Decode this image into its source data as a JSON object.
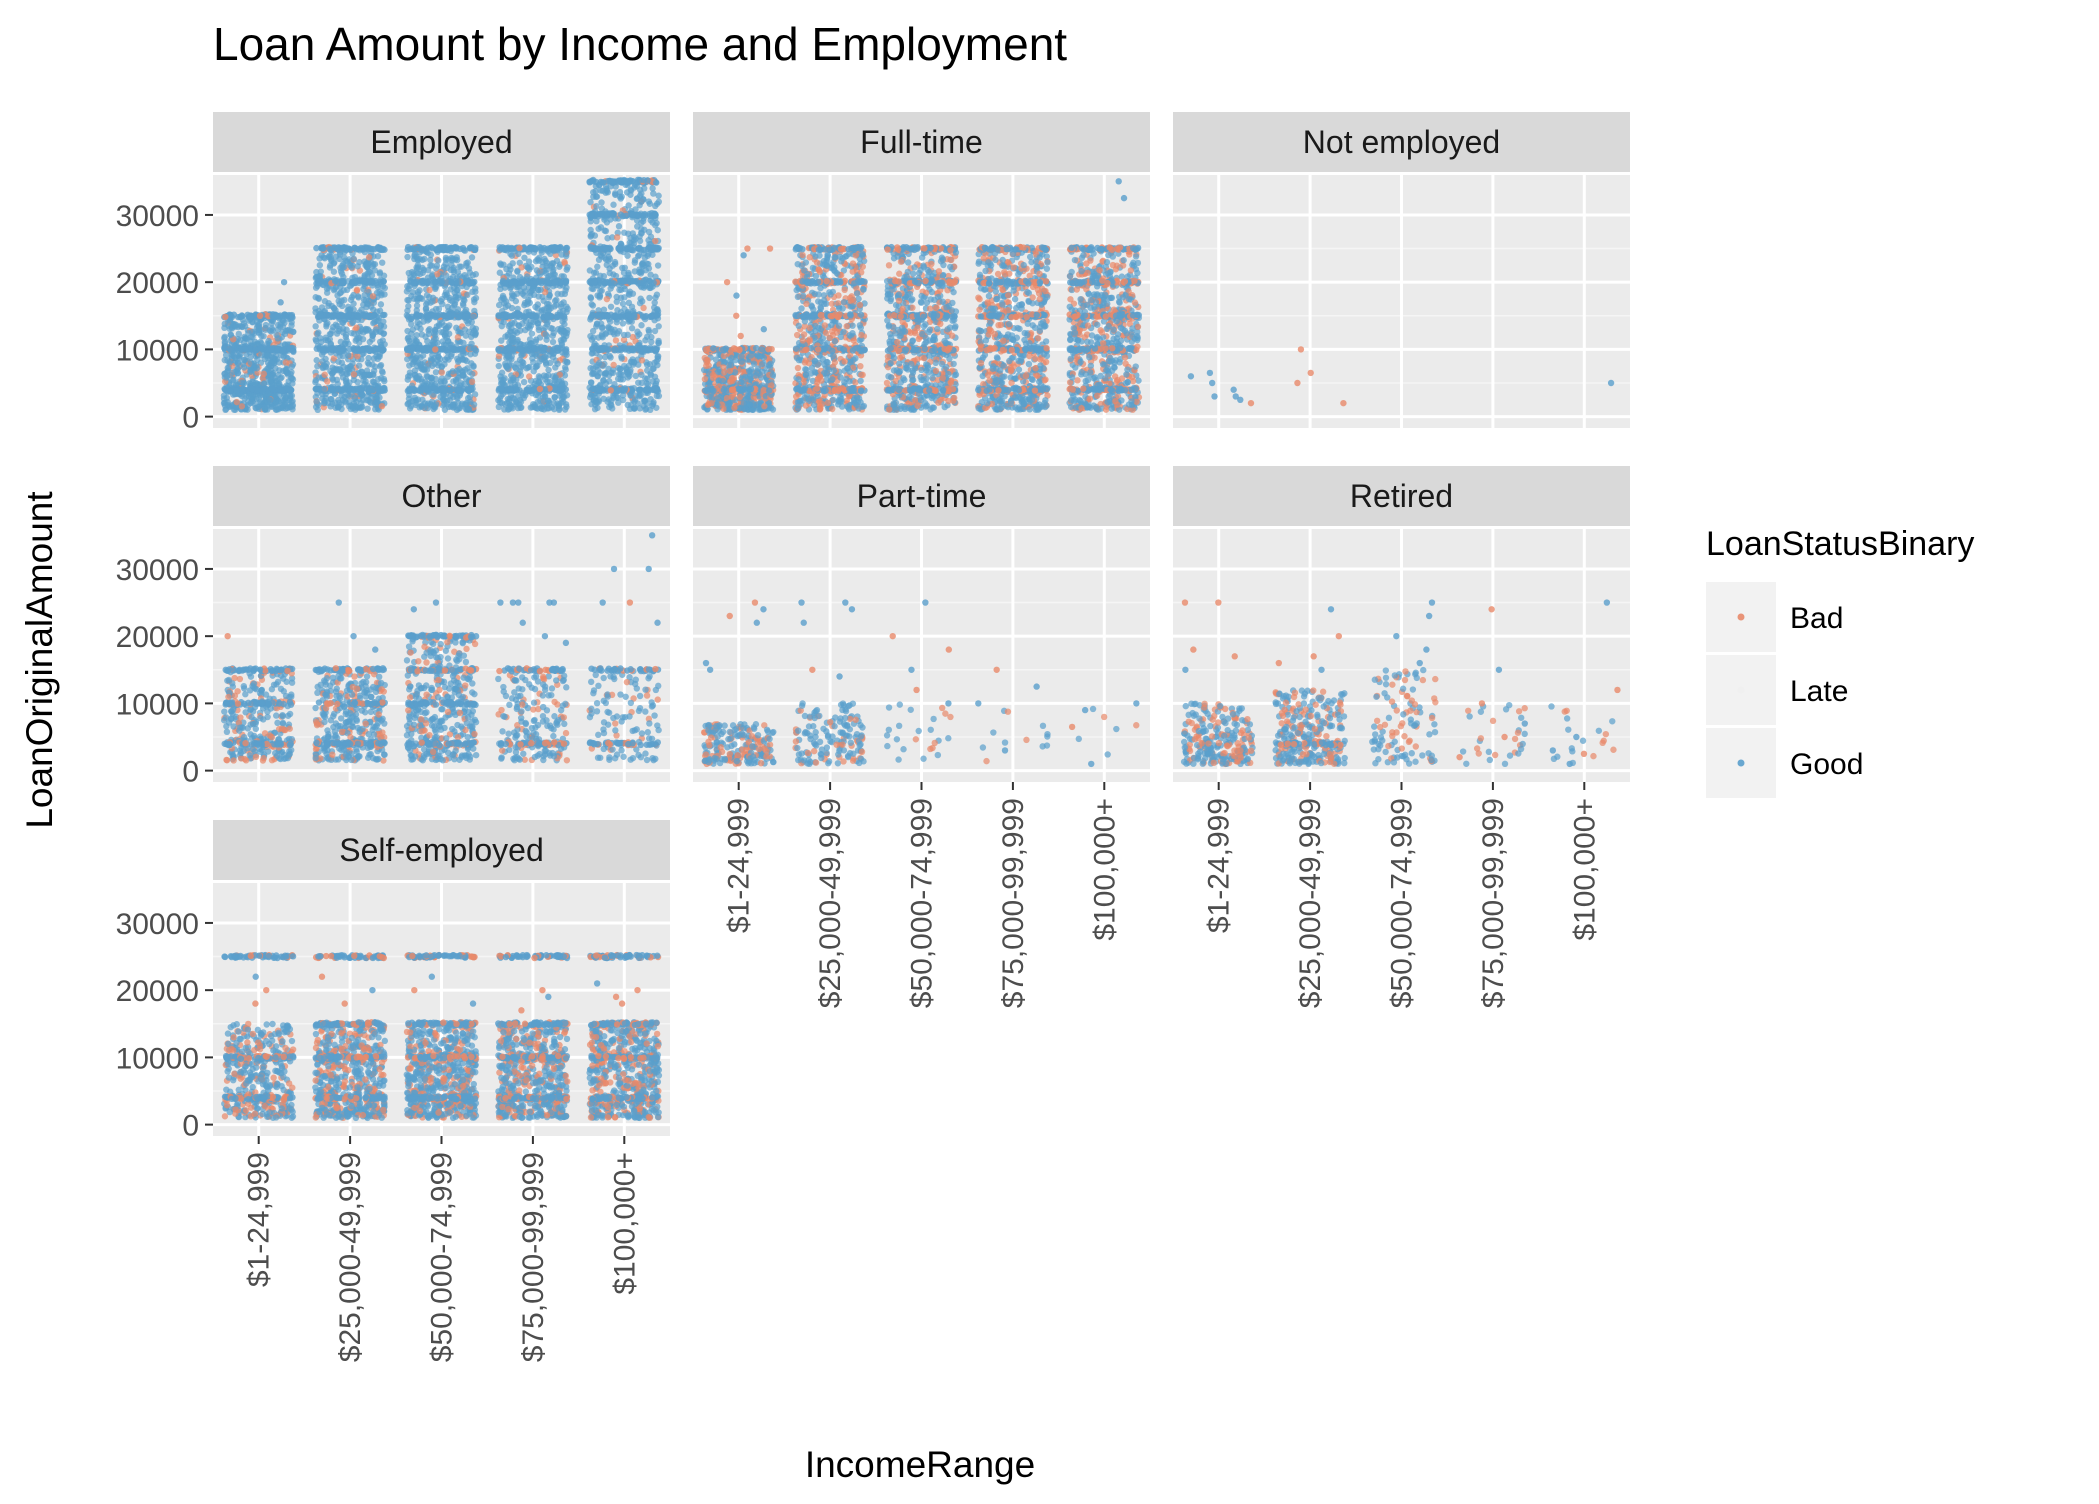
{
  "chart_data": {
    "type": "scatter",
    "title": "Loan Amount by Income and Employment",
    "xlabel": "IncomeRange",
    "ylabel": "LoanOriginalAmount",
    "x_categories": [
      "$1-24,999",
      "$25,000-49,999",
      "$50,000-74,999",
      "$75,000-99,999",
      "$100,000+"
    ],
    "y_ticks": [
      0,
      10000,
      20000,
      30000
    ],
    "ylim": [
      0,
      35000
    ],
    "grid": true,
    "legend": {
      "title": "LoanStatusBinary",
      "placement": "right",
      "entries": [
        {
          "name": "Bad",
          "color": "#e8896a"
        },
        {
          "name": "Late",
          "color": "#f0f0f0"
        },
        {
          "name": "Good",
          "color": "#5a9fcc"
        }
      ]
    },
    "panels": [
      {
        "name": "Employed",
        "density": [
          1.0,
          1.0,
          1.0,
          1.0,
          1.0
        ],
        "ranges": [
          [
            1000,
            15000
          ],
          [
            1000,
            25000
          ],
          [
            1000,
            25000
          ],
          [
            1000,
            25000
          ],
          [
            1000,
            35000
          ]
        ],
        "bad_share": 0.05,
        "levels": [
          [
            4000,
            10000,
            15000
          ],
          [
            4000,
            10000,
            15000,
            20000,
            25000
          ],
          [
            4000,
            10000,
            15000,
            20000,
            25000
          ],
          [
            4000,
            10000,
            15000,
            20000,
            25000
          ],
          [
            4000,
            10000,
            15000,
            20000,
            25000,
            30000,
            35000
          ]
        ],
        "points": [
          {
            "x": 0,
            "y": 20000,
            "s": "Good"
          },
          {
            "x": 0,
            "y": 17000,
            "s": "Good"
          },
          {
            "x": 1,
            "y": 21000,
            "s": "Good"
          },
          {
            "x": 4,
            "y": 32000,
            "s": "Good"
          },
          {
            "x": 4,
            "y": 33000,
            "s": "Good"
          }
        ]
      },
      {
        "name": "Full-time",
        "density": [
          0.85,
          1.0,
          1.0,
          1.0,
          1.0
        ],
        "ranges": [
          [
            1000,
            10000
          ],
          [
            1000,
            25000
          ],
          [
            1000,
            25000
          ],
          [
            1000,
            25000
          ],
          [
            1000,
            25000
          ]
        ],
        "bad_share": 0.35,
        "levels": [
          [
            4000,
            10000
          ],
          [
            4000,
            10000,
            15000,
            20000,
            25000
          ],
          [
            4000,
            10000,
            15000,
            20000,
            25000
          ],
          [
            4000,
            10000,
            15000,
            20000,
            25000
          ],
          [
            4000,
            10000,
            15000,
            20000,
            25000
          ]
        ],
        "points": [
          {
            "x": 0,
            "y": 25000,
            "s": "Bad"
          },
          {
            "x": 0,
            "y": 25000,
            "s": "Bad"
          },
          {
            "x": 0,
            "y": 20000,
            "s": "Bad"
          },
          {
            "x": 0,
            "y": 18000,
            "s": "Good"
          },
          {
            "x": 0,
            "y": 15000,
            "s": "Bad"
          },
          {
            "x": 0,
            "y": 13000,
            "s": "Good"
          },
          {
            "x": 0,
            "y": 24000,
            "s": "Good"
          },
          {
            "x": 0,
            "y": 12000,
            "s": "Bad"
          },
          {
            "x": 4,
            "y": 32500,
            "s": "Good"
          },
          {
            "x": 4,
            "y": 35000,
            "s": "Good"
          }
        ]
      },
      {
        "name": "Not employed",
        "density": [
          0,
          0,
          0,
          0,
          0
        ],
        "ranges": [
          [
            1000,
            5000
          ],
          [
            1000,
            5000
          ],
          [
            1000,
            5000
          ],
          [
            1000,
            5000
          ],
          [
            1000,
            5000
          ]
        ],
        "bad_share": 0.4,
        "levels": [
          [],
          [],
          [],
          [],
          []
        ],
        "points": [
          {
            "x": 0,
            "y": 2000,
            "s": "Bad"
          },
          {
            "x": 0,
            "y": 3000,
            "s": "Good"
          },
          {
            "x": 0,
            "y": 2500,
            "s": "Good"
          },
          {
            "x": 0,
            "y": 3000,
            "s": "Good"
          },
          {
            "x": 0,
            "y": 4000,
            "s": "Good"
          },
          {
            "x": 0,
            "y": 5000,
            "s": "Good"
          },
          {
            "x": 0,
            "y": 6000,
            "s": "Good"
          },
          {
            "x": 0,
            "y": 6500,
            "s": "Good"
          },
          {
            "x": 1,
            "y": 2000,
            "s": "Bad"
          },
          {
            "x": 1,
            "y": 6500,
            "s": "Bad"
          },
          {
            "x": 1,
            "y": 5000,
            "s": "Bad"
          },
          {
            "x": 1,
            "y": 10000,
            "s": "Bad"
          },
          {
            "x": 4,
            "y": 5000,
            "s": "Good"
          }
        ]
      },
      {
        "name": "Other",
        "density": [
          0.45,
          0.55,
          0.6,
          0.3,
          0.18
        ],
        "ranges": [
          [
            1500,
            15000
          ],
          [
            1500,
            15000
          ],
          [
            1500,
            20000
          ],
          [
            1500,
            15000
          ],
          [
            1500,
            15000
          ]
        ],
        "bad_share": 0.2,
        "levels": [
          [
            4000,
            10000,
            15000
          ],
          [
            4000,
            10000,
            15000
          ],
          [
            4000,
            10000,
            15000,
            20000
          ],
          [
            4000,
            15000
          ],
          [
            4000,
            15000
          ]
        ],
        "points": [
          {
            "x": 0,
            "y": 20000,
            "s": "Bad"
          },
          {
            "x": 1,
            "y": 25000,
            "s": "Good"
          },
          {
            "x": 1,
            "y": 20000,
            "s": "Good"
          },
          {
            "x": 1,
            "y": 18000,
            "s": "Good"
          },
          {
            "x": 2,
            "y": 25000,
            "s": "Good"
          },
          {
            "x": 2,
            "y": 24000,
            "s": "Good"
          },
          {
            "x": 3,
            "y": 25000,
            "s": "Good"
          },
          {
            "x": 3,
            "y": 25000,
            "s": "Good"
          },
          {
            "x": 3,
            "y": 25000,
            "s": "Good"
          },
          {
            "x": 3,
            "y": 25000,
            "s": "Good"
          },
          {
            "x": 3,
            "y": 25000,
            "s": "Good"
          },
          {
            "x": 3,
            "y": 22000,
            "s": "Good"
          },
          {
            "x": 3,
            "y": 20000,
            "s": "Good"
          },
          {
            "x": 3,
            "y": 19000,
            "s": "Good"
          },
          {
            "x": 4,
            "y": 35000,
            "s": "Good"
          },
          {
            "x": 4,
            "y": 30000,
            "s": "Good"
          },
          {
            "x": 4,
            "y": 30000,
            "s": "Good"
          },
          {
            "x": 4,
            "y": 25000,
            "s": "Good"
          },
          {
            "x": 4,
            "y": 25000,
            "s": "Bad"
          },
          {
            "x": 4,
            "y": 22000,
            "s": "Good"
          }
        ]
      },
      {
        "name": "Part-time",
        "density": [
          0.35,
          0.25,
          0.04,
          0.02,
          0.01
        ],
        "ranges": [
          [
            1000,
            7000
          ],
          [
            1000,
            10000
          ],
          [
            1000,
            10000
          ],
          [
            1000,
            10000
          ],
          [
            1000,
            10000
          ]
        ],
        "bad_share": 0.3,
        "levels": [
          [],
          [],
          [],
          [],
          []
        ],
        "points": [
          {
            "x": 0,
            "y": 25000,
            "s": "Bad"
          },
          {
            "x": 0,
            "y": 24000,
            "s": "Good"
          },
          {
            "x": 0,
            "y": 23000,
            "s": "Bad"
          },
          {
            "x": 0,
            "y": 22000,
            "s": "Good"
          },
          {
            "x": 0,
            "y": 16000,
            "s": "Good"
          },
          {
            "x": 0,
            "y": 15000,
            "s": "Good"
          },
          {
            "x": 1,
            "y": 25000,
            "s": "Good"
          },
          {
            "x": 1,
            "y": 25000,
            "s": "Good"
          },
          {
            "x": 1,
            "y": 24000,
            "s": "Good"
          },
          {
            "x": 1,
            "y": 22000,
            "s": "Good"
          },
          {
            "x": 1,
            "y": 15000,
            "s": "Bad"
          },
          {
            "x": 1,
            "y": 14000,
            "s": "Good"
          },
          {
            "x": 2,
            "y": 20000,
            "s": "Bad"
          },
          {
            "x": 2,
            "y": 18000,
            "s": "Bad"
          },
          {
            "x": 2,
            "y": 25000,
            "s": "Good"
          },
          {
            "x": 2,
            "y": 15000,
            "s": "Good"
          },
          {
            "x": 2,
            "y": 10000,
            "s": "Good"
          },
          {
            "x": 2,
            "y": 12000,
            "s": "Bad"
          },
          {
            "x": 3,
            "y": 15000,
            "s": "Bad"
          },
          {
            "x": 3,
            "y": 12500,
            "s": "Good"
          },
          {
            "x": 3,
            "y": 10000,
            "s": "Good"
          },
          {
            "x": 3,
            "y": 3000,
            "s": "Good"
          },
          {
            "x": 4,
            "y": 10000,
            "s": "Good"
          },
          {
            "x": 4,
            "y": 9000,
            "s": "Good"
          },
          {
            "x": 4,
            "y": 6500,
            "s": "Bad"
          },
          {
            "x": 4,
            "y": 1000,
            "s": "Good"
          }
        ]
      },
      {
        "name": "Retired",
        "density": [
          0.4,
          0.45,
          0.18,
          0.05,
          0.03
        ],
        "ranges": [
          [
            1000,
            10000
          ],
          [
            1000,
            12000
          ],
          [
            1000,
            15000
          ],
          [
            1000,
            10000
          ],
          [
            1000,
            10000
          ]
        ],
        "bad_share": 0.35,
        "levels": [
          [],
          [
            4000
          ],
          [],
          [],
          []
        ],
        "points": [
          {
            "x": 0,
            "y": 25000,
            "s": "Bad"
          },
          {
            "x": 0,
            "y": 25000,
            "s": "Bad"
          },
          {
            "x": 0,
            "y": 18000,
            "s": "Bad"
          },
          {
            "x": 0,
            "y": 17000,
            "s": "Bad"
          },
          {
            "x": 0,
            "y": 15000,
            "s": "Good"
          },
          {
            "x": 1,
            "y": 24000,
            "s": "Good"
          },
          {
            "x": 1,
            "y": 20000,
            "s": "Bad"
          },
          {
            "x": 1,
            "y": 17000,
            "s": "Bad"
          },
          {
            "x": 1,
            "y": 16000,
            "s": "Bad"
          },
          {
            "x": 1,
            "y": 15000,
            "s": "Good"
          },
          {
            "x": 2,
            "y": 25000,
            "s": "Good"
          },
          {
            "x": 2,
            "y": 23000,
            "s": "Good"
          },
          {
            "x": 2,
            "y": 20000,
            "s": "Good"
          },
          {
            "x": 2,
            "y": 18000,
            "s": "Good"
          },
          {
            "x": 2,
            "y": 16000,
            "s": "Good"
          },
          {
            "x": 3,
            "y": 24000,
            "s": "Bad"
          },
          {
            "x": 3,
            "y": 15000,
            "s": "Good"
          },
          {
            "x": 3,
            "y": 10000,
            "s": "Bad"
          },
          {
            "x": 3,
            "y": 7000,
            "s": "Good"
          },
          {
            "x": 3,
            "y": 5000,
            "s": "Bad"
          },
          {
            "x": 3,
            "y": 2000,
            "s": "Bad"
          },
          {
            "x": 4,
            "y": 25000,
            "s": "Good"
          },
          {
            "x": 4,
            "y": 12000,
            "s": "Bad"
          },
          {
            "x": 4,
            "y": 5000,
            "s": "Good"
          },
          {
            "x": 4,
            "y": 3000,
            "s": "Good"
          },
          {
            "x": 4,
            "y": 2500,
            "s": "Bad"
          },
          {
            "x": 4,
            "y": 1000,
            "s": "Good"
          }
        ]
      },
      {
        "name": "Self-employed",
        "density": [
          0.6,
          0.85,
          0.9,
          0.85,
          0.85
        ],
        "ranges": [
          [
            1000,
            15000
          ],
          [
            1000,
            15000
          ],
          [
            1000,
            15000
          ],
          [
            1000,
            15000
          ],
          [
            1000,
            15000
          ]
        ],
        "bad_share": 0.3,
        "levels": [
          [
            4000,
            10000,
            25000
          ],
          [
            4000,
            10000,
            15000,
            25000
          ],
          [
            4000,
            10000,
            15000,
            25000
          ],
          [
            4000,
            10000,
            15000,
            25000
          ],
          [
            4000,
            10000,
            15000,
            25000
          ]
        ],
        "points": [
          {
            "x": 0,
            "y": 20000,
            "s": "Bad"
          },
          {
            "x": 0,
            "y": 22000,
            "s": "Good"
          },
          {
            "x": 0,
            "y": 18000,
            "s": "Bad"
          },
          {
            "x": 1,
            "y": 20000,
            "s": "Good"
          },
          {
            "x": 1,
            "y": 22000,
            "s": "Bad"
          },
          {
            "x": 1,
            "y": 18000,
            "s": "Bad"
          },
          {
            "x": 2,
            "y": 20000,
            "s": "Bad"
          },
          {
            "x": 2,
            "y": 22000,
            "s": "Good"
          },
          {
            "x": 2,
            "y": 18000,
            "s": "Good"
          },
          {
            "x": 3,
            "y": 20000,
            "s": "Bad"
          },
          {
            "x": 3,
            "y": 19000,
            "s": "Good"
          },
          {
            "x": 3,
            "y": 17000,
            "s": "Bad"
          },
          {
            "x": 4,
            "y": 20000,
            "s": "Bad"
          },
          {
            "x": 4,
            "y": 19000,
            "s": "Bad"
          },
          {
            "x": 4,
            "y": 18000,
            "s": "Bad"
          },
          {
            "x": 4,
            "y": 21000,
            "s": "Good"
          }
        ]
      }
    ]
  }
}
